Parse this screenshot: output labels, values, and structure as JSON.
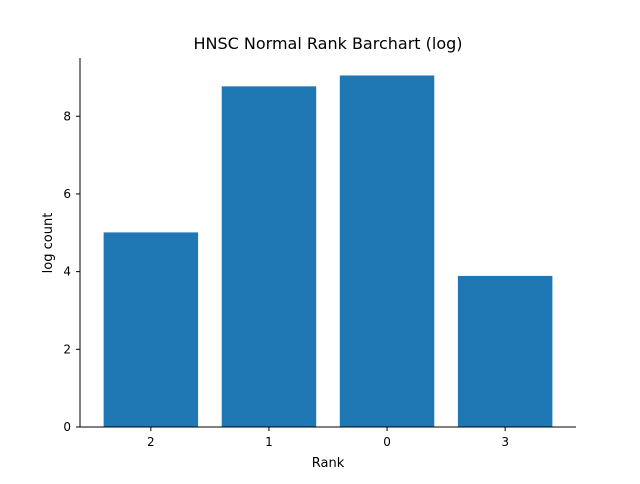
{
  "chart_data": {
    "type": "bar",
    "title": "HNSC Normal Rank Barchart (log)",
    "xlabel": "Rank",
    "ylabel": "log count",
    "categories": [
      "2",
      "1",
      "0",
      "3"
    ],
    "values": [
      5.01,
      8.77,
      9.05,
      3.89
    ],
    "ylim": [
      0,
      9.5
    ],
    "yticks": [
      "0",
      "2",
      "4",
      "6",
      "8"
    ],
    "grid": false,
    "legend": "none",
    "colors": {
      "bar": "#1f77b4",
      "axis": "#000000",
      "text": "#000000",
      "background": "#ffffff"
    }
  }
}
